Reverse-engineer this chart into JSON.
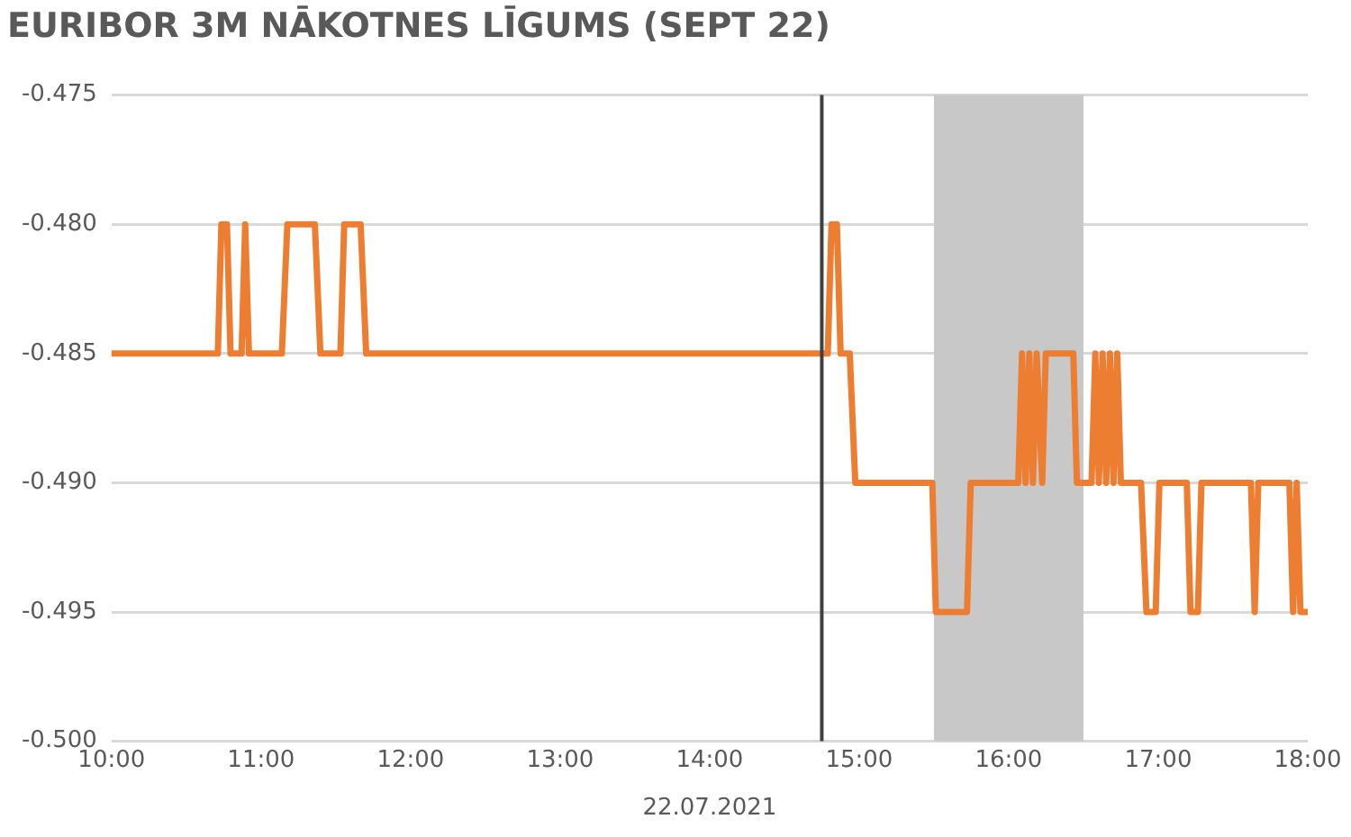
{
  "chart_data": {
    "type": "line",
    "title": "EURIBOR 3M NĀKOTNES LĪGUMS (SEPT 22)",
    "xlabel": "22.07.2021",
    "x": [
      10.0,
      10.711,
      10.735,
      10.772,
      10.796,
      10.87,
      10.894,
      10.919,
      11.139,
      11.176,
      11.36,
      11.397,
      11.531,
      11.556,
      11.666,
      11.703,
      14.79,
      14.815,
      14.851,
      14.876,
      14.937,
      14.974,
      15.489,
      15.513,
      15.721,
      15.746,
      16.064,
      16.089,
      16.113,
      16.138,
      16.162,
      16.187,
      16.224,
      16.248,
      16.432,
      16.456,
      16.554,
      16.579,
      16.603,
      16.628,
      16.652,
      16.677,
      16.701,
      16.726,
      16.75,
      16.775,
      16.885,
      16.921,
      16.983,
      17.008,
      17.191,
      17.216,
      17.265,
      17.289,
      17.62,
      17.645,
      17.669,
      17.877,
      17.902,
      17.926,
      17.951,
      18.0
    ],
    "series": [
      {
        "color": "#ed7d31",
        "values": [
          -0.485,
          -0.485,
          -0.48,
          -0.48,
          -0.485,
          -0.485,
          -0.48,
          -0.485,
          -0.485,
          -0.48,
          -0.48,
          -0.485,
          -0.485,
          -0.48,
          -0.48,
          -0.485,
          -0.485,
          -0.48,
          -0.48,
          -0.485,
          -0.485,
          -0.49,
          -0.49,
          -0.495,
          -0.495,
          -0.49,
          -0.49,
          -0.485,
          -0.49,
          -0.485,
          -0.49,
          -0.485,
          -0.49,
          -0.485,
          -0.485,
          -0.49,
          -0.49,
          -0.485,
          -0.49,
          -0.485,
          -0.49,
          -0.485,
          -0.49,
          -0.485,
          -0.49,
          -0.49,
          -0.49,
          -0.495,
          -0.495,
          -0.49,
          -0.49,
          -0.495,
          -0.495,
          -0.49,
          -0.49,
          -0.495,
          -0.49,
          -0.49,
          -0.495,
          -0.49,
          -0.495,
          -0.495
        ]
      }
    ],
    "xlim": [
      10,
      18
    ],
    "xticks": [
      {
        "value": 10,
        "label": "10:00"
      },
      {
        "value": 11,
        "label": "11:00"
      },
      {
        "value": 12,
        "label": "12:00"
      },
      {
        "value": 13,
        "label": "13:00"
      },
      {
        "value": 14,
        "label": "14:00"
      },
      {
        "value": 15,
        "label": "15:00"
      },
      {
        "value": 16,
        "label": "16:00"
      },
      {
        "value": 17,
        "label": "17:00"
      },
      {
        "value": 18,
        "label": "18:00"
      }
    ],
    "ylim": [
      -0.5,
      -0.475
    ],
    "yticks": [
      {
        "value": -0.5,
        "label": "-0.500"
      },
      {
        "value": -0.495,
        "label": "-0.495"
      },
      {
        "value": -0.49,
        "label": "-0.490"
      },
      {
        "value": -0.485,
        "label": "-0.485"
      },
      {
        "value": -0.48,
        "label": "-0.480"
      },
      {
        "value": -0.475,
        "label": "-0.475"
      }
    ],
    "grid": "y",
    "legend": false,
    "marker": "none",
    "line_style": "solid",
    "ref_lines": [
      {
        "axis": "x",
        "value": 14.75,
        "color": "#404040"
      }
    ],
    "bands": [
      {
        "axis": "x",
        "from": 15.5,
        "to": 16.5,
        "color": "#c8c8c8"
      }
    ]
  }
}
